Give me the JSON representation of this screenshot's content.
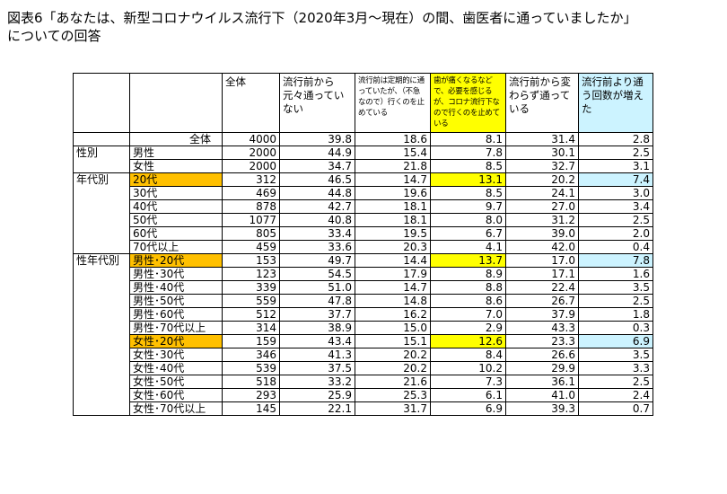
{
  "title": {
    "line1": "図表6「あなたは、新型コロナウイルス流行下（2020年3月〜現在）の間、歯医者に通っていましたか」",
    "line2": "についての回答"
  },
  "headers": {
    "total": "全体",
    "col1": "流行前から元々通っていない",
    "col2": "流行前は定期的に通っていたが、（不急なので）行くのを止めている",
    "col3": "歯が痛くなるなどで、必要を感じるが、コロナ流行下なので行くのを止めている",
    "col4": "流行前から変わらず通っている",
    "col5": "流行前より通う回数が増えた"
  },
  "colors": {
    "orange": "#ffc000",
    "yellow": "#ffff00",
    "cyan": "#ccf3ff"
  },
  "groups": {
    "sex": "性別",
    "age": "年代別",
    "sexage": "性年代別"
  },
  "rows": {
    "all": {
      "label": "全体",
      "n": "4000",
      "v": [
        "39.8",
        "18.6",
        "8.1",
        "31.4",
        "2.8"
      ]
    },
    "male": {
      "label": "男性",
      "n": "2000",
      "v": [
        "44.9",
        "15.4",
        "7.8",
        "30.1",
        "2.5"
      ]
    },
    "female": {
      "label": "女性",
      "n": "2000",
      "v": [
        "34.7",
        "21.8",
        "8.5",
        "32.7",
        "3.1"
      ]
    },
    "a20": {
      "label": "20代",
      "n": "312",
      "v": [
        "46.5",
        "14.7",
        "13.1",
        "20.2",
        "7.4"
      ]
    },
    "a30": {
      "label": "30代",
      "n": "469",
      "v": [
        "44.8",
        "19.6",
        "8.5",
        "24.1",
        "3.0"
      ]
    },
    "a40": {
      "label": "40代",
      "n": "878",
      "v": [
        "42.7",
        "18.1",
        "9.7",
        "27.0",
        "3.4"
      ]
    },
    "a50": {
      "label": "50代",
      "n": "1077",
      "v": [
        "40.8",
        "18.1",
        "8.0",
        "31.2",
        "2.5"
      ]
    },
    "a60": {
      "label": "60代",
      "n": "805",
      "v": [
        "33.4",
        "19.5",
        "6.7",
        "39.0",
        "2.0"
      ]
    },
    "a70": {
      "label": "70代以上",
      "n": "459",
      "v": [
        "33.6",
        "20.3",
        "4.1",
        "42.0",
        "0.4"
      ]
    },
    "m20": {
      "label": "男性･20代",
      "n": "153",
      "v": [
        "49.7",
        "14.4",
        "13.7",
        "17.0",
        "7.8"
      ]
    },
    "m30": {
      "label": "男性･30代",
      "n": "123",
      "v": [
        "54.5",
        "17.9",
        "8.9",
        "17.1",
        "1.6"
      ]
    },
    "m40": {
      "label": "男性･40代",
      "n": "339",
      "v": [
        "51.0",
        "14.7",
        "8.8",
        "22.4",
        "3.5"
      ]
    },
    "m50": {
      "label": "男性･50代",
      "n": "559",
      "v": [
        "47.8",
        "14.8",
        "8.6",
        "26.7",
        "2.5"
      ]
    },
    "m60": {
      "label": "男性･60代",
      "n": "512",
      "v": [
        "37.7",
        "16.2",
        "7.0",
        "37.9",
        "1.8"
      ]
    },
    "m70": {
      "label": "男性･70代以上",
      "n": "314",
      "v": [
        "38.9",
        "15.0",
        "2.9",
        "43.3",
        "0.3"
      ]
    },
    "f20": {
      "label": "女性･20代",
      "n": "159",
      "v": [
        "43.4",
        "15.1",
        "12.6",
        "23.3",
        "6.9"
      ]
    },
    "f30": {
      "label": "女性･30代",
      "n": "346",
      "v": [
        "41.3",
        "20.2",
        "8.4",
        "26.6",
        "3.5"
      ]
    },
    "f40": {
      "label": "女性･40代",
      "n": "539",
      "v": [
        "37.5",
        "20.2",
        "10.2",
        "29.9",
        "3.3"
      ]
    },
    "f50": {
      "label": "女性･50代",
      "n": "518",
      "v": [
        "33.2",
        "21.6",
        "7.3",
        "36.1",
        "2.5"
      ]
    },
    "f60": {
      "label": "女性･60代",
      "n": "293",
      "v": [
        "25.9",
        "25.3",
        "6.1",
        "41.0",
        "2.4"
      ]
    },
    "f70": {
      "label": "女性･70代以上",
      "n": "145",
      "v": [
        "22.1",
        "31.7",
        "6.9",
        "39.3",
        "0.7"
      ]
    }
  }
}
